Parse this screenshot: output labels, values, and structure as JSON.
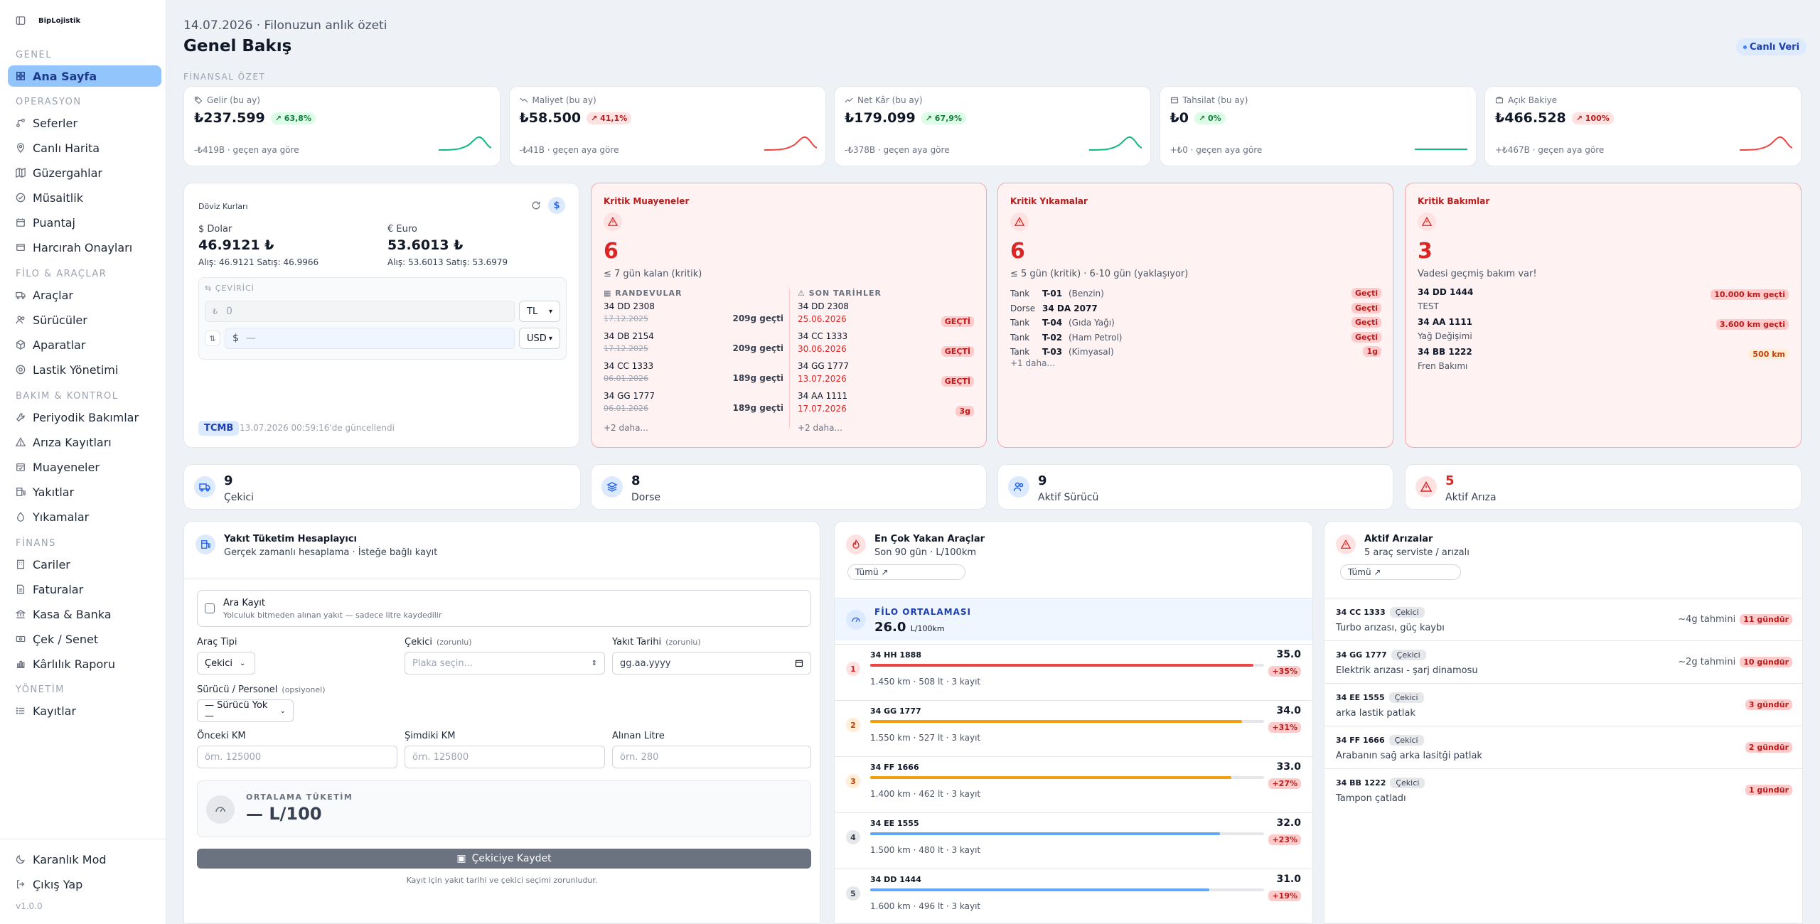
{
  "brand": {
    "name": "BipLojistik"
  },
  "sidebar": {
    "sections": {
      "genel": "GENEL",
      "operasyon": "OPERASYON",
      "filo": "FİLO & ARAÇLAR",
      "bakim": "BAKIM & KONTROL",
      "finans": "FİNANS",
      "yonetim": "YÖNETİM"
    },
    "items": {
      "ana_sayfa": "Ana Sayfa",
      "seferler": "Seferler",
      "canli_harita": "Canlı Harita",
      "guzergahlar": "Güzergahlar",
      "musaitlik": "Müsaitlik",
      "puantaj": "Puantaj",
      "harcirah": "Harcırah Onayları",
      "araclar": "Araçlar",
      "suruculer": "Sürücüler",
      "aparatlar": "Aparatlar",
      "lastik": "Lastik Yönetimi",
      "periyodik": "Periyodik Bakımlar",
      "ariza": "Arıza Kayıtları",
      "muayeneler": "Muayeneler",
      "yakitlar": "Yakıtlar",
      "yikamalar": "Yıkamalar",
      "cariler": "Cariler",
      "faturalar": "Faturalar",
      "kasa": "Kasa & Banka",
      "cek": "Çek / Senet",
      "karlilik": "Kârlılık Raporu",
      "kayitlar": "Kayıtlar"
    },
    "dark_mode": "Karanlık Mod",
    "logout": "Çıkış Yap",
    "version": "v1.0.0"
  },
  "header": {
    "date_line": "14.07.2026 · Filonuzun anlık özeti",
    "title": "Genel Bakış",
    "live": "Canlı Veri",
    "finance_label": "FİNANSAL ÖZET"
  },
  "kpis": [
    {
      "label": "Gelir (bu ay)",
      "value": "₺237.599",
      "change": "↗ 63,8%",
      "dir": "up",
      "foot": "-₺419B · geçen aya göre",
      "color": "#10b981"
    },
    {
      "label": "Maliyet (bu ay)",
      "value": "₺58.500",
      "change": "↗ 41,1%",
      "dir": "down",
      "foot": "-₺41B · geçen aya göre",
      "color": "#ef4444"
    },
    {
      "label": "Net Kâr (bu ay)",
      "value": "₺179.099",
      "change": "↗ 67,9%",
      "dir": "up",
      "foot": "-₺378B · geçen aya göre",
      "color": "#10b981"
    },
    {
      "label": "Tahsilat (bu ay)",
      "value": "₺0",
      "change": "↗ 0%",
      "dir": "up",
      "foot": "+₺0 · geçen aya göre",
      "color": "#10b981"
    },
    {
      "label": "Açık Bakiye",
      "value": "₺466.528",
      "change": "↗ 100%",
      "dir": "down",
      "foot": "+₺467B · geçen aya göre",
      "color": "#ef4444"
    }
  ],
  "fx": {
    "title": "Döviz Kurları",
    "usd_label": "$ Dolar",
    "usd_value": "46.9121 ₺",
    "usd_detail": "Alış: 46.9121   Satış: 46.9966",
    "eur_label": "€ Euro",
    "eur_value": "53.6013 ₺",
    "eur_detail": "Alış: 53.6013   Satış: 53.6979",
    "converter_label": "⇆ ÇEVİRİCİ",
    "from_placeholder": "0",
    "from_currency": "TL",
    "to_placeholder": "—",
    "to_currency": "USD",
    "to_prefix": "$",
    "from_prefix": "₺",
    "source": "TCMB",
    "updated": "13.07.2026 00:59:16'de güncellendi"
  },
  "crit_muayene": {
    "title": "Kritik Muayeneler",
    "count": "6",
    "sub": "≤ 7 gün kalan (kritik)",
    "col1": "RANDEVULAR",
    "col2": "SON TARİHLER",
    "appts": [
      {
        "plate": "34 DD 2308",
        "date": "17.12.2025",
        "ago": "209g geçti"
      },
      {
        "plate": "34 DB 2154",
        "date": "17.12.2025",
        "ago": "209g geçti"
      },
      {
        "plate": "34 CC 1333",
        "date": "06.01.2026",
        "ago": "189g geçti"
      },
      {
        "plate": "34 GG 1777",
        "date": "06.01.2026",
        "ago": "189g geçti"
      }
    ],
    "deadlines": [
      {
        "plate": "34 DD 2308",
        "date": "25.06.2026",
        "badge": "GEÇTİ"
      },
      {
        "plate": "34 CC 1333",
        "date": "30.06.2026",
        "badge": "GEÇTİ"
      },
      {
        "plate": "34 GG 1777",
        "date": "13.07.2026",
        "badge": "GEÇTİ"
      },
      {
        "plate": "34 AA 1111",
        "date": "17.07.2026",
        "badge": "3g"
      }
    ],
    "more1": "+2 daha...",
    "more2": "+2 daha..."
  },
  "crit_yikama": {
    "title": "Kritik Yıkamalar",
    "count": "6",
    "sub": "≤ 5 gün (kritik) · 6-10 gün (yaklaşıyor)",
    "rows": [
      {
        "type": "Tank",
        "code": "T-01",
        "name": "(Benzin)",
        "badge": "Geçti"
      },
      {
        "type": "Dorse",
        "code": "34 DA 2077",
        "name": "",
        "badge": "Geçti"
      },
      {
        "type": "Tank",
        "code": "T-04",
        "name": "(Gıda Yağı)",
        "badge": "Geçti"
      },
      {
        "type": "Tank",
        "code": "T-02",
        "name": "(Ham Petrol)",
        "badge": "Geçti"
      },
      {
        "type": "Tank",
        "code": "T-03",
        "name": "(Kimyasal)",
        "badge": "1g"
      }
    ],
    "more": "+1 daha..."
  },
  "crit_bakim": {
    "title": "Kritik Bakımlar",
    "count": "3",
    "sub": "Vadesi geçmiş bakım var!",
    "rows": [
      {
        "plate": "34 DD 1444",
        "desc": "TEST",
        "badge": "10.000 km geçti"
      },
      {
        "plate": "34 AA 1111",
        "desc": "Yağ Değişimi",
        "badge": "3.600 km geçti"
      },
      {
        "plate": "34 BB 1222",
        "desc": "Fren Bakımı",
        "badge": "500 km"
      }
    ]
  },
  "summary": [
    {
      "num": "9",
      "label": "Çekici"
    },
    {
      "num": "8",
      "label": "Dorse"
    },
    {
      "num": "9",
      "label": "Aktif Sürücü"
    },
    {
      "num": "5",
      "label": "Aktif Arıza"
    }
  ],
  "fuel_calc": {
    "title": "Yakıt Tüketim Hesaplayıcı",
    "sub": "Gerçek zamanlı hesaplama · İsteğe bağlı kayıt",
    "ara_kayit": "Ara Kayıt",
    "ara_kayit_desc": "Yolculuk bitmeden alınan yakıt — sadece litre kaydedilir",
    "arac_tipi": "Araç Tipi",
    "arac_tipi_val": "Çekici",
    "cekici": "Çekici",
    "cekici_req": "(zorunlu)",
    "cekici_ph": "Plaka seçin...",
    "tarih": "Yakıt Tarihi",
    "tarih_req": "(zorunlu)",
    "tarih_ph": "gg.aa.yyyy",
    "surucu": "Sürücü / Personel",
    "surucu_opt": "(opsiyonel)",
    "surucu_val": "— Sürücü Yok —",
    "onceki": "Önceki KM",
    "onceki_ph": "örn. 125000",
    "simdiki": "Şimdiki KM",
    "simdiki_ph": "örn. 125800",
    "litre": "Alınan Litre",
    "litre_ph": "örn. 280",
    "avg_label": "ORTALAMA TÜKETİM",
    "avg_val": "— L/100",
    "save": "Çekiciye Kaydet",
    "note": "Kayıt için yakıt tarihi ve çekici seçimi zorunludur."
  },
  "top_burn": {
    "title": "En Çok Yakan Araçlar",
    "sub": "Son 90 gün · L/100km",
    "filter": "Tümü ↗",
    "fleet_label": "FİLO ORTALAMASI",
    "fleet_val": "26.0",
    "fleet_unit": "L/100km",
    "vehicles": [
      {
        "rank": "1",
        "plate": "34 HH 1888",
        "value": 35.0,
        "value_text": "35.0",
        "change": "+35%",
        "stats": "1.450 km · 508 lt · 3 kayıt",
        "color": "#ef4444"
      },
      {
        "rank": "2",
        "plate": "34 GG 1777",
        "value": 34.0,
        "value_text": "34.0",
        "change": "+31%",
        "stats": "1.550 km · 527 lt · 3 kayıt",
        "color": "#f59e0b"
      },
      {
        "rank": "3",
        "plate": "34 FF 1666",
        "value": 33.0,
        "value_text": "33.0",
        "change": "+27%",
        "stats": "1.400 km · 462 lt · 3 kayıt",
        "color": "#f59e0b"
      },
      {
        "rank": "4",
        "plate": "34 EE 1555",
        "value": 32.0,
        "value_text": "32.0",
        "change": "+23%",
        "stats": "1.500 km · 480 lt · 3 kayıt",
        "color": "#60a5fa"
      },
      {
        "rank": "5",
        "plate": "34 DD 1444",
        "value": 31.0,
        "value_text": "31.0",
        "change": "+19%",
        "stats": "1.600 km · 496 lt · 3 kayıt",
        "color": "#60a5fa"
      }
    ]
  },
  "faults": {
    "title": "Aktif Arızalar",
    "sub": "5 araç serviste / arızalı",
    "filter": "Tümü ↗",
    "rows": [
      {
        "plate": "34 CC 1333",
        "tag": "Çekici",
        "desc": "Turbo arızası, güç kaybı",
        "est": "~4g tahmini",
        "days": "11 gündür"
      },
      {
        "plate": "34 GG 1777",
        "tag": "Çekici",
        "desc": "Elektrik arızası - şarj dinamosu",
        "est": "~2g tahmini",
        "days": "10 gündür"
      },
      {
        "plate": "34 EE 1555",
        "tag": "Çekici",
        "desc": "arka lastik patlak",
        "est": "",
        "days": "3 gündür"
      },
      {
        "plate": "34 FF 1666",
        "tag": "Çekici",
        "desc": "Arabanın sağ arka lasitği patlak",
        "est": "",
        "days": "2 gündür"
      },
      {
        "plate": "34 BB 1222",
        "tag": "Çekici",
        "desc": "Tampon çatladı",
        "est": "",
        "days": "1 gündür"
      }
    ]
  }
}
